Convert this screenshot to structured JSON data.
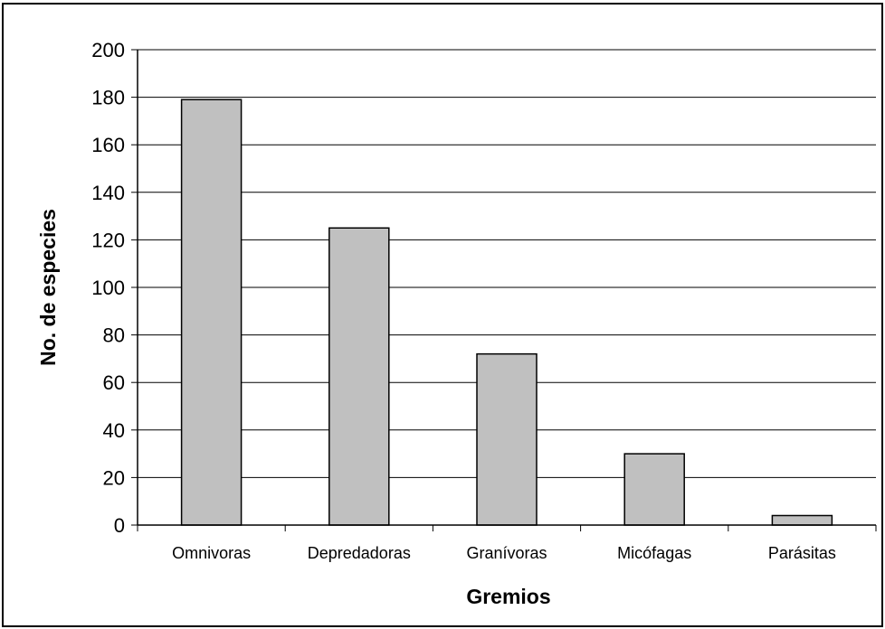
{
  "chart_data": {
    "type": "bar",
    "categories": [
      "Omnivoras",
      "Depredadoras",
      "Granívoras",
      "Micófagas",
      "Parásitas"
    ],
    "values": [
      179,
      125,
      72,
      30,
      4
    ],
    "xlabel": "Gremios",
    "ylabel": "No. de especies",
    "ylim": [
      0,
      200
    ],
    "yticks": [
      0,
      20,
      40,
      60,
      80,
      100,
      120,
      140,
      160,
      180,
      200
    ],
    "grid": true,
    "bar_color": "#c0c0c0",
    "legend": null
  }
}
